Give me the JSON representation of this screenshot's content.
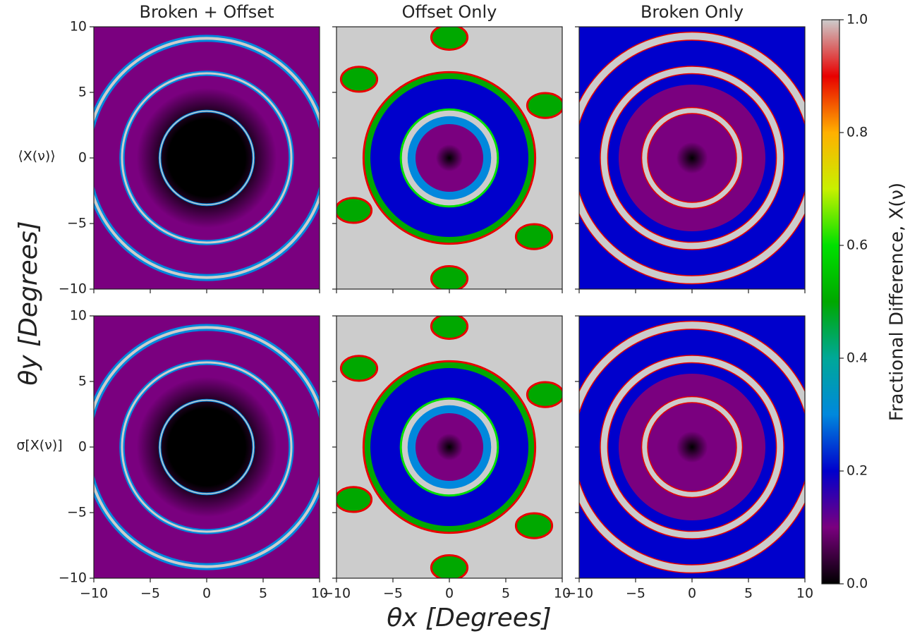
{
  "chart_data": {
    "type": "heatmap",
    "column_titles": [
      "Broken + Offset",
      "Offset Only",
      "Broken Only"
    ],
    "row_labels": [
      "⟨X(ν)⟩",
      "σ[X(ν)]"
    ],
    "xlabel": "θx [Degrees]",
    "ylabel": "θy [Degrees]",
    "xlim": [
      -10,
      10
    ],
    "ylim": [
      -10,
      10
    ],
    "xticks": [
      {
        "value": -10,
        "label": "−10"
      },
      {
        "value": -5,
        "label": "−5"
      },
      0,
      5,
      10
    ],
    "yticks": [
      {
        "value": -10,
        "label": "−10"
      },
      {
        "value": -5,
        "label": "−5"
      },
      0,
      5,
      10
    ],
    "colorbar": {
      "label": "Fractional Difference, X(ν)",
      "lim": [
        0,
        1
      ],
      "ticks": [
        {
          "value": 0,
          "label": "0.0"
        },
        {
          "value": 0.2,
          "label": "0.2"
        },
        {
          "value": 0.4,
          "label": "0.4"
        },
        {
          "value": 0.6,
          "label": "0.6"
        },
        {
          "value": 0.8,
          "label": "0.8"
        },
        {
          "value": 1,
          "label": "1.0"
        }
      ],
      "colors": [
        "#000000",
        "#7a007f",
        "#0000cc",
        "#0088dd",
        "#00a898",
        "#00a800",
        "#00e000",
        "#c8f000",
        "#ffb000",
        "#e80000",
        "#cccccc"
      ]
    }
  }
}
